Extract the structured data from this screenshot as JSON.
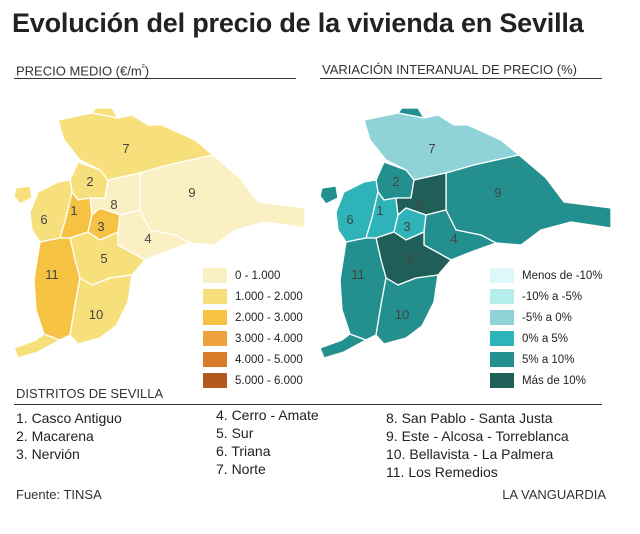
{
  "title": "Evolución del precio de la vivienda en Sevilla",
  "left_map": {
    "heading": "PRECIO MEDIO (€/m²)",
    "legend": [
      {
        "label": "0 - 1.000",
        "color": "#fbf0c4"
      },
      {
        "label": "1.000 - 2.000",
        "color": "#f7e07c"
      },
      {
        "label": "2.000 - 3.000",
        "color": "#f5c242"
      },
      {
        "label": "3.000 - 4.000",
        "color": "#eda23b"
      },
      {
        "label": "4.000 - 5.000",
        "color": "#d97c2a"
      },
      {
        "label": "5.000 - 6.000",
        "color": "#b3591d"
      }
    ],
    "district_fill": {
      "1": "#f5c242",
      "2": "#f7e07c",
      "3": "#f5c242",
      "4": "#fbf0c4",
      "5": "#f7e07c",
      "6": "#f7e07c",
      "7": "#f7e07c",
      "8": "#fbf0c4",
      "9": "#fbf0c4",
      "10": "#f7e07c",
      "11": "#f5c242"
    }
  },
  "right_map": {
    "heading": "VARIACIÓN INTERANUAL DE PRECIO (%)",
    "legend": [
      {
        "label": "Menos de -10%",
        "color": "#e0f7f7"
      },
      {
        "label": "-10% a -5%",
        "color": "#b5ecec"
      },
      {
        "label": "-5% a 0%",
        "color": "#8fd3d8"
      },
      {
        "label": "0% a 5%",
        "color": "#2eb3b8"
      },
      {
        "label": "5% a 10%",
        "color": "#23908f"
      },
      {
        "label": "Más de 10%",
        "color": "#1f5f57"
      }
    ],
    "district_fill": {
      "1": "#2eb3b8",
      "2": "#23908f",
      "3": "#2eb3b8",
      "4": "#23908f",
      "5": "#1f5f57",
      "6": "#2eb3b8",
      "7": "#8fd3d8",
      "8": "#1f5f57",
      "9": "#23908f",
      "10": "#23908f",
      "11": "#23908f"
    }
  },
  "district_labels": [
    "1",
    "2",
    "3",
    "4",
    "5",
    "6",
    "7",
    "8",
    "9",
    "10",
    "11"
  ],
  "districts_heading": "DISTRITOS DE SEVILLA",
  "districts": [
    "1. Casco Antiguo",
    "2. Macarena",
    "3. Nervión",
    "4. Cerro - Amate",
    "5. Sur",
    "6. Triana",
    "7. Norte",
    "8. San Pablo - Santa Justa",
    "9. Este - Alcosa - Torreblanca",
    "10. Bellavista - La Palmera",
    "11. Los Remedios"
  ],
  "source": "Fuente: TINSA",
  "credit": "LA VANGUARDIA"
}
